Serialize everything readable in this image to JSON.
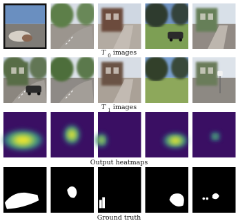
{
  "rows": [
    {
      "id": "t0",
      "caption_var": "T",
      "caption_sub": "0",
      "caption_rest": " images",
      "kind": "photo",
      "panels": [
        {
          "scene": "curb-debris-vehicle-frame",
          "sky": "#6a8fc0",
          "ground": "#7f7c77",
          "accent": "#2f5a2d"
        },
        {
          "scene": "street-with-trees",
          "sky": "#d8dde6",
          "ground": "#9b958e",
          "accent": "#5d7f48"
        },
        {
          "scene": "house-porch",
          "sky": "#cfd7e2",
          "ground": "#b3aba2",
          "accent": "#6c4b3c"
        },
        {
          "scene": "lawn-car",
          "sky": "#6f92c1",
          "ground": "#7d9f54",
          "accent": "#2d3b2d"
        },
        {
          "scene": "house-sidewalk",
          "sky": "#d8e0e8",
          "ground": "#918a84",
          "accent": "#667f58"
        }
      ]
    },
    {
      "id": "t1",
      "caption_var": "T",
      "caption_sub": "1",
      "caption_rest": " images",
      "kind": "photo",
      "panels": [
        {
          "scene": "house-street-car",
          "sky": "#c8d2df",
          "ground": "#8b867f",
          "accent": "#596d47"
        },
        {
          "scene": "curving-road",
          "sky": "#dde3ea",
          "ground": "#8e8a86",
          "accent": "#4e6e3b"
        },
        {
          "scene": "porch-corner",
          "sky": "#d7dde5",
          "ground": "#aaa197",
          "accent": "#6b5245"
        },
        {
          "scene": "tree-lawn",
          "sky": "#7aa0cf",
          "ground": "#8da85b",
          "accent": "#30402b"
        },
        {
          "scene": "stop-sign-house",
          "sky": "#dde3ea",
          "ground": "#8d8983",
          "accent": "#6a7b5a"
        }
      ]
    },
    {
      "id": "heatmaps",
      "caption_var": "",
      "caption_sub": "",
      "caption_rest": "Output heatmaps",
      "kind": "heatmap",
      "panels": [
        {
          "blobs": [
            {
              "cx": 0.45,
              "cy": 0.62,
              "rx": 0.36,
              "ry": 0.17,
              "level": 1.0
            }
          ]
        },
        {
          "blobs": [
            {
              "cx": 0.49,
              "cy": 0.5,
              "rx": 0.14,
              "ry": 0.16,
              "level": 1.0
            }
          ]
        },
        {
          "blobs": [
            {
              "cx": 0.08,
              "cy": 0.62,
              "rx": 0.1,
              "ry": 0.11,
              "level": 0.9
            }
          ]
        },
        {
          "blobs": [
            {
              "cx": 0.7,
              "cy": 0.63,
              "rx": 0.22,
              "ry": 0.12,
              "level": 1.0
            }
          ]
        },
        {
          "blobs": [
            {
              "cx": 0.53,
              "cy": 0.54,
              "rx": 0.08,
              "ry": 0.07,
              "level": 0.75
            }
          ]
        }
      ]
    },
    {
      "id": "ground_truth",
      "caption_var": "",
      "caption_sub": "",
      "caption_rest": "Ground truth",
      "kind": "mask",
      "panels": [
        {
          "shape": "large-left"
        },
        {
          "shape": "small-blob"
        },
        {
          "shape": "left-bars"
        },
        {
          "shape": "right-blob"
        },
        {
          "shape": "tiny-spots"
        }
      ]
    }
  ],
  "colors": {
    "heatmap_bg": "#3a0f63",
    "heatmap_mid": "#2fa190",
    "heatmap_high": "#f4e82b",
    "mask_fg": "#ffffff",
    "mask_bg": "#000000"
  }
}
